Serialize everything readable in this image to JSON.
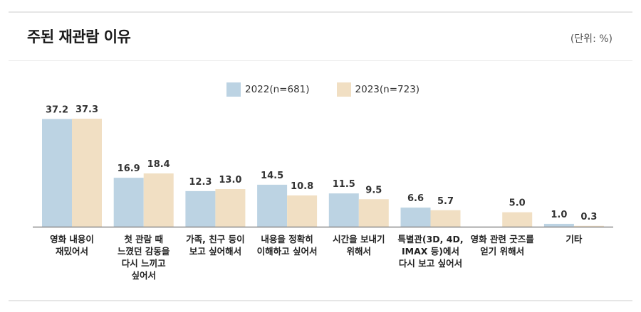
{
  "header": {
    "title": "주된 재관람 이유",
    "unit": "(단위: %)"
  },
  "colors": {
    "series_2022": "#bcd3e3",
    "series_2023": "#f1dfc3",
    "axis": "#8a8a8a"
  },
  "chart_data": {
    "type": "bar",
    "title": "주된 재관람 이유",
    "unit": "(단위: %)",
    "legend_position": "top-center",
    "grid": false,
    "ylim": [
      0,
      40
    ],
    "categories": [
      [
        "영화 내용이",
        "재밌어서"
      ],
      [
        "첫 관람 때",
        "느꼈던 감동을",
        "다시 느끼고",
        "싶어서"
      ],
      [
        "가족, 친구 등이",
        "보고 싶어해서"
      ],
      [
        "내용을 정확히",
        "이해하고 싶어서"
      ],
      [
        "시간을 보내기",
        "위해서"
      ],
      [
        "특별관(3D, 4D,",
        "IMAX 등)에서",
        "다시 보고 싶어서"
      ],
      [
        "영화 관련 굿즈를",
        "얻기 위해서"
      ],
      [
        "기타"
      ]
    ],
    "series": [
      {
        "name": "2022(n=681)",
        "values": [
          37.2,
          16.9,
          12.3,
          14.5,
          11.5,
          6.6,
          null,
          1.0
        ]
      },
      {
        "name": "2023(n=723)",
        "values": [
          37.3,
          18.4,
          13.0,
          10.8,
          9.5,
          5.7,
          5.0,
          0.3
        ]
      }
    ]
  }
}
